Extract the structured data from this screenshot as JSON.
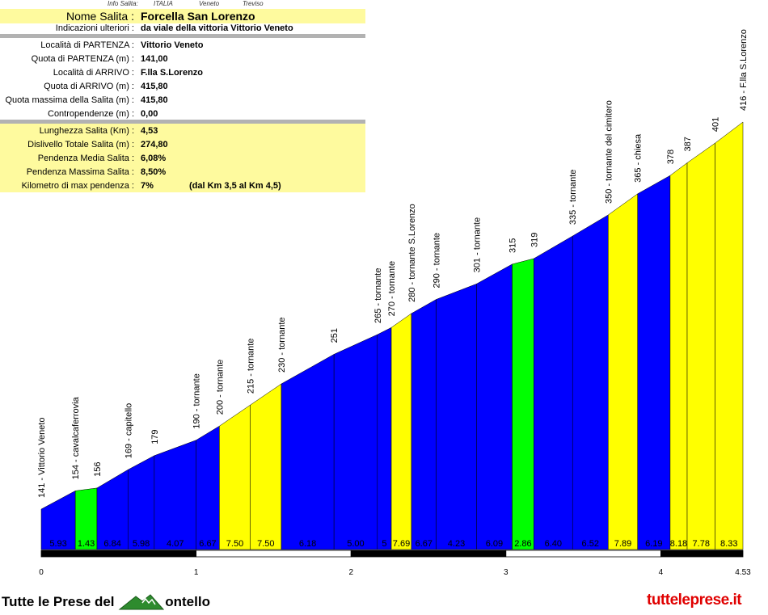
{
  "info": {
    "meta": [
      "Info Salita:",
      "ITALIA",
      "Veneto",
      "Treviso"
    ],
    "name_label": "Nome Salita :",
    "name_value": "Forcella San Lorenzo",
    "rows_top": [
      {
        "label": "Indicazioni ulteriori :",
        "value": "da viale della vittoria Vittorio Veneto"
      }
    ],
    "rows_mid": [
      {
        "label": "Località di PARTENZA :",
        "value": "Vittorio Veneto"
      },
      {
        "label": "Quota di PARTENZA (m) :",
        "value": "141,00"
      },
      {
        "label": "Località di ARRIVO :",
        "value": "F.lla S.Lorenzo"
      },
      {
        "label": "Quota di ARRIVO (m) :",
        "value": "415,80"
      },
      {
        "label": "Quota massima della Salita (m) :",
        "value": "415,80"
      },
      {
        "label": "Contropendenze (m) :",
        "value": "0,00"
      }
    ],
    "rows_stats": [
      {
        "label": "Lunghezza Salita (Km) :",
        "value": "4,53"
      },
      {
        "label": "Dislivello Totale Salita (m) :",
        "value": "274,80"
      },
      {
        "label": "Pendenza Media Salita :",
        "value": "6,08%"
      },
      {
        "label": "Pendenza Massima Salita :",
        "value": "8,50%"
      },
      {
        "label": "Kilometro di max pendenza :",
        "value": "7%",
        "extra": "(dal Km 3,5 al Km 4,5)"
      }
    ]
  },
  "chart_data": {
    "type": "area",
    "xlim": [
      0,
      4.53
    ],
    "x_ticks": [
      "0",
      "1",
      "2",
      "3",
      "4",
      "4.53"
    ],
    "colors": {
      "blue": "#0000ff",
      "yellow": "#ffff00",
      "green": "#00ff00"
    },
    "points": [
      {
        "km": 0.0,
        "alt": 141,
        "label": "141 - Vittorio Veneto"
      },
      {
        "km": 0.22,
        "alt": 154,
        "label": "154 - cavalcaferrovia"
      },
      {
        "km": 0.36,
        "alt": 156,
        "label": "156"
      },
      {
        "km": 0.56,
        "alt": 169,
        "label": "169 - capitello"
      },
      {
        "km": 0.73,
        "alt": 179,
        "label": "179"
      },
      {
        "km": 1.0,
        "alt": 190,
        "label": "190 - tornante"
      },
      {
        "km": 1.15,
        "alt": 200,
        "label": "200 - tornante"
      },
      {
        "km": 1.35,
        "alt": 215,
        "label": "215 - tornante"
      },
      {
        "km": 1.55,
        "alt": 230,
        "label": "230 - tornante"
      },
      {
        "km": 1.89,
        "alt": 251,
        "label": "251"
      },
      {
        "km": 2.17,
        "alt": 265,
        "label": "265 - tornante"
      },
      {
        "km": 2.26,
        "alt": 270,
        "label": "270 - tornante"
      },
      {
        "km": 2.39,
        "alt": 280,
        "label": "280 - tornante S.Lorenzo"
      },
      {
        "km": 2.55,
        "alt": 290,
        "label": "290 - tornante"
      },
      {
        "km": 2.81,
        "alt": 301,
        "label": "301 - tornante"
      },
      {
        "km": 3.04,
        "alt": 315,
        "label": "315"
      },
      {
        "km": 3.18,
        "alt": 319,
        "label": "319"
      },
      {
        "km": 3.43,
        "alt": 335,
        "label": "335 - tornante"
      },
      {
        "km": 3.66,
        "alt": 350,
        "label": "350 - tornante del cimitero"
      },
      {
        "km": 3.85,
        "alt": 365,
        "label": "365 - chiesa"
      },
      {
        "km": 4.06,
        "alt": 378,
        "label": "378"
      },
      {
        "km": 4.17,
        "alt": 387,
        "label": "387"
      },
      {
        "km": 4.35,
        "alt": 401,
        "label": "401"
      },
      {
        "km": 4.53,
        "alt": 416,
        "label": "416 - F.lla S.Lorenzo"
      }
    ],
    "segments": [
      {
        "grade": "5.93",
        "color": "blue"
      },
      {
        "grade": "1.43",
        "color": "green"
      },
      {
        "grade": "6.84",
        "color": "blue"
      },
      {
        "grade": "5.98",
        "color": "blue"
      },
      {
        "grade": "4.07",
        "color": "blue"
      },
      {
        "grade": "6.67",
        "color": "blue"
      },
      {
        "grade": "7.50",
        "color": "yellow"
      },
      {
        "grade": "7.50",
        "color": "yellow"
      },
      {
        "grade": "6.18",
        "color": "blue"
      },
      {
        "grade": "5.00",
        "color": "blue"
      },
      {
        "grade": "5",
        "color": "blue"
      },
      {
        "grade": "7.69",
        "color": "yellow"
      },
      {
        "grade": "6.67",
        "color": "blue"
      },
      {
        "grade": "4.23",
        "color": "blue"
      },
      {
        "grade": "6.09",
        "color": "blue"
      },
      {
        "grade": "2.86",
        "color": "green"
      },
      {
        "grade": "6.40",
        "color": "blue"
      },
      {
        "grade": "6.52",
        "color": "blue"
      },
      {
        "grade": "7.89",
        "color": "yellow"
      },
      {
        "grade": "6.19",
        "color": "blue"
      },
      {
        "grade": "8.18",
        "color": "yellow"
      },
      {
        "grade": "7.78",
        "color": "yellow"
      },
      {
        "grade": "8.33",
        "color": "yellow"
      }
    ]
  },
  "footer": {
    "left_text_a": "Tutte le Prese del",
    "left_text_b": "ontello",
    "right_text": "tutteleprese.it"
  }
}
